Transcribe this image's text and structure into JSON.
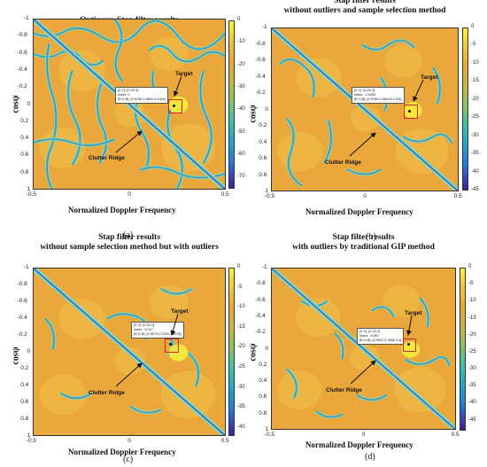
{
  "chart_data": [
    {
      "type": "heatmap",
      "title": "Optimum Stap filter results",
      "xlabel": "Normalized Doppler Frequency",
      "ylabel": "cosψ",
      "x_ticks": [
        "-0.5",
        "0",
        "0.5"
      ],
      "y_ticks": [
        "-1",
        "-0.8",
        "-0.6",
        "-0.4",
        "-0.2",
        "0",
        "0.2",
        "0.4",
        "0.6",
        "0.8",
        "1"
      ],
      "colorbar_ticks": [
        "0",
        "-10",
        "-20",
        "-30",
        "-40",
        "-50",
        "-60",
        "-70"
      ],
      "xlim": [
        -0.5,
        0.5
      ],
      "ylim": [
        -1,
        1
      ],
      "clim": [
        -75,
        0
      ],
      "datatip": [
        "[X,Y]: [0.25 0]",
        "Index: 0",
        "[R,G,B]: [0.9765 0.9804 0.0784]"
      ],
      "annotations": [
        "Target",
        "Clutter Ridge"
      ],
      "target": {
        "x": 0.25,
        "y": 0
      },
      "caption": "(a)"
    },
    {
      "type": "heatmap",
      "title": "Stap filter results\nwithout outliers and  sample selection method",
      "xlabel": "Normalized Doppler Frequency",
      "ylabel": "cosψ",
      "x_ticks": [
        "-0.5",
        "0",
        "0.5"
      ],
      "y_ticks": [
        "-1",
        "-0.8",
        "-0.6",
        "-0.4",
        "-0.2",
        "0",
        "0.2",
        "0.4",
        "0.6",
        "0.8",
        "1"
      ],
      "colorbar_ticks": [
        "0",
        "-5",
        "-10",
        "-15",
        "-20",
        "-25",
        "-30",
        "-35",
        "-40",
        "-45"
      ],
      "xlim": [
        -0.5,
        0.5
      ],
      "ylim": [
        -1,
        1
      ],
      "clim": [
        -45,
        0
      ],
      "datatip": [
        "[X,Y]: [0.25 0]",
        "Index: -0.0209",
        "[R,G,B]: [0.9765 0.9804 0.0784]"
      ],
      "annotations": [
        "Target",
        "Clutter Ridge"
      ],
      "target": {
        "x": 0.25,
        "y": 0
      },
      "caption": "(b)"
    },
    {
      "type": "heatmap",
      "title": "Stap filter results\nwithout  sample selection method but with outliers",
      "xlabel": "Normalized Doppler Frequency",
      "ylabel": "cosψ",
      "x_ticks": [
        "-0.5",
        "0",
        "0.5"
      ],
      "y_ticks": [
        "-1",
        "-0.8",
        "-0.6",
        "-0.4",
        "-0.2",
        "0",
        "0.2",
        "0.4",
        "0.6",
        "0.8",
        "1"
      ],
      "colorbar_ticks": [
        "0",
        "-5",
        "-10",
        "-15",
        "-20",
        "-25",
        "-30",
        "-35",
        "-40"
      ],
      "xlim": [
        -0.5,
        0.5
      ],
      "ylim": [
        -1,
        1
      ],
      "clim": [
        -42,
        0
      ],
      "datatip": [
        "[X,Y]: [0.25 0]",
        "Index: -6.117",
        "[R,G,B]: [0.9073 0.7200 0.2078]"
      ],
      "annotations": [
        "Target",
        "Clutter Ridge"
      ],
      "target": {
        "x": 0.25,
        "y": 0
      },
      "caption": "(c)"
    },
    {
      "type": "heatmap",
      "title": "Stap filter results\nwith outliers by traditional GIP method",
      "xlabel": "Normalized Doppler Frequency",
      "ylabel": "cosψ",
      "x_ticks": [
        "-0.5",
        "0",
        "0.5"
      ],
      "y_ticks": [
        "-1",
        "-0.8",
        "-0.6",
        "-0.4",
        "-0.2",
        "0",
        "0.2",
        "0.4",
        "0.6",
        "0.8",
        "1"
      ],
      "colorbar_ticks": [
        "0",
        "-5",
        "-10",
        "-15",
        "-20",
        "-25",
        "-30",
        "-35",
        "-40",
        "-45"
      ],
      "xlim": [
        -0.5,
        0.5
      ],
      "ylim": [
        -1,
        1
      ],
      "clim": [
        -48,
        0
      ],
      "datatip": [
        "[X,Y]: [0.25 0]",
        "Index: -6.501",
        "[R,G,B]: [0.9922 0.7882 0.2]"
      ],
      "annotations": [
        "Target",
        "Clutter Ridge"
      ],
      "target": {
        "x": 0.25,
        "y": 0
      },
      "caption": "(d)"
    }
  ],
  "colors": {
    "background": "#e9a73c",
    "ridge": "#2a9fc9",
    "ridge_glow": "#8fd3b0",
    "target_peak": "#f9f23a",
    "target_box": "#d32020"
  }
}
